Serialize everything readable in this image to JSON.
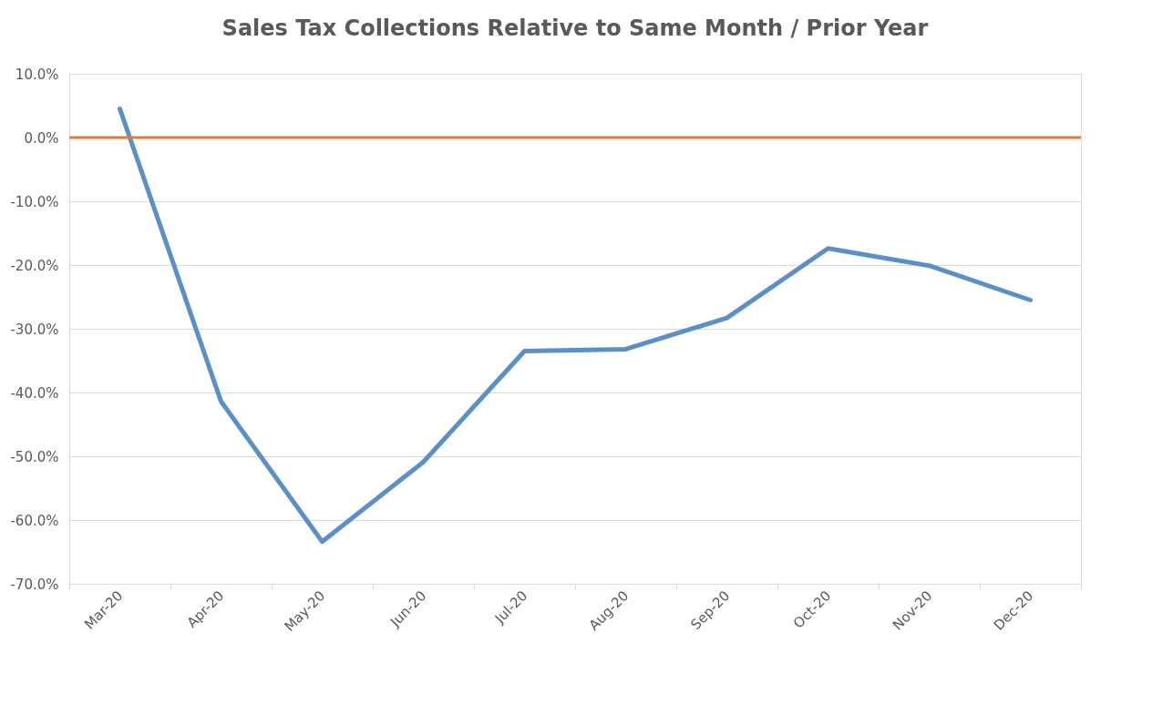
{
  "chart_data": {
    "type": "line",
    "title": "Sales Tax Collections Relative to Same Month / Prior Year",
    "categories": [
      "Mar-20",
      "Apr-20",
      "May-20",
      "Jun-20",
      "Jul-20",
      "Aug-20",
      "Sep-20",
      "Oct-20",
      "Nov-20",
      "Dec-20"
    ],
    "series": [
      {
        "color": "#5b8fc7",
        "values": [
          4.5,
          -41.4,
          -63.4,
          -50.9,
          -33.5,
          -33.2,
          -28.3,
          -17.4,
          -20.1,
          -25.5
        ]
      }
    ],
    "ylim": [
      -70,
      10
    ],
    "yticks": [
      {
        "value": 10,
        "label": "10.0%"
      },
      {
        "value": 0,
        "label": "0.0%"
      },
      {
        "value": -10,
        "label": "-10.0%"
      },
      {
        "value": -20,
        "label": "-20.0%"
      },
      {
        "value": -30,
        "label": "-30.0%"
      },
      {
        "value": -40,
        "label": "-40.0%"
      },
      {
        "value": -50,
        "label": "-50.0%"
      },
      {
        "value": -60,
        "label": "-60.0%"
      },
      {
        "value": -70,
        "label": "-70.0%"
      }
    ],
    "ref_lines": [
      {
        "axis": "y",
        "value": 0,
        "color": "#e07b39"
      }
    ],
    "grid": "y",
    "legend": false,
    "marker": "none",
    "line_style": "solid"
  }
}
